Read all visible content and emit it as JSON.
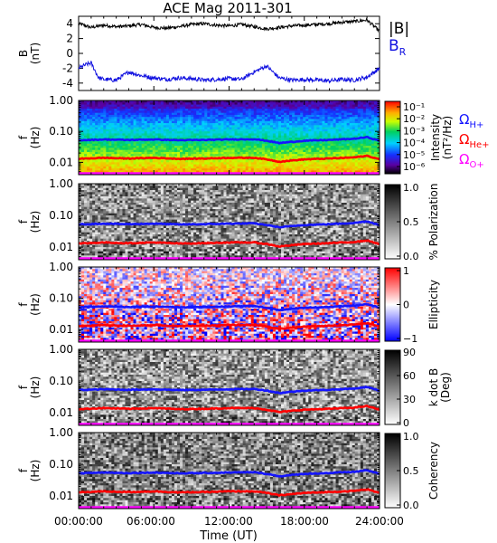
{
  "figure": {
    "title": "ACE Mag 2011-301",
    "xlabel": "Time (UT)",
    "xticks": [
      "00:00:00",
      "06:00:00",
      "12:00:00",
      "18:00:00",
      "24:00:00"
    ]
  },
  "colors": {
    "bt": "#000000",
    "br": "#1010e0",
    "h_plus": "#1515ff",
    "he_plus": "#ff0000",
    "o_plus": "#ff00ff"
  },
  "legend": {
    "bt_label": "|B|",
    "br_label": "B",
    "br_sub": "R",
    "omega": "Ω",
    "h_sub": "H+",
    "he_sub": "He+",
    "o_sub": "O+"
  },
  "chart_data": [
    {
      "type": "line",
      "ylabel": "B",
      "yunit": "(nT)",
      "ylim": [
        -5,
        5
      ],
      "yticks": [
        "4",
        "2",
        "0",
        "-2",
        "-4"
      ],
      "xlim_hours": [
        0,
        24
      ],
      "series": [
        {
          "name": "|B|",
          "x": [
            0,
            1,
            2,
            3,
            4,
            5,
            6,
            7,
            8,
            9,
            10,
            11,
            12,
            13,
            14,
            15,
            16,
            17,
            18,
            19,
            20,
            21,
            22,
            23,
            24
          ],
          "values": [
            4.0,
            3.5,
            3.8,
            3.6,
            3.7,
            3.9,
            3.5,
            3.4,
            3.6,
            3.9,
            4.0,
            3.8,
            3.7,
            3.9,
            3.6,
            3.3,
            3.5,
            3.7,
            3.8,
            3.9,
            4.0,
            4.2,
            4.3,
            4.5,
            3.0
          ]
        },
        {
          "name": "B_R",
          "x": [
            0,
            0.6,
            1,
            1.6,
            2,
            3,
            4,
            5,
            6,
            7,
            8,
            9,
            10,
            11,
            12,
            13,
            14,
            15,
            16,
            17,
            18,
            19,
            20,
            21,
            22,
            23,
            24
          ],
          "values": [
            -2.0,
            -1.5,
            -1.3,
            -3.3,
            -3.5,
            -3.6,
            -2.5,
            -3.0,
            -3.3,
            -3.5,
            -3.3,
            -3.4,
            -3.6,
            -3.5,
            -3.4,
            -3.5,
            -2.5,
            -1.7,
            -3.3,
            -3.6,
            -3.5,
            -3.6,
            -3.7,
            -3.5,
            -3.6,
            -3.2,
            -2.0
          ]
        }
      ]
    },
    {
      "type": "heatmap",
      "panel": "power",
      "ylabel": "f",
      "yunit": "(Hz)",
      "yscale": "log",
      "ylim_hz": [
        0.004,
        1.0
      ],
      "yticks": [
        "1.00",
        "0.10",
        "0.01"
      ],
      "colorbar": {
        "label": "Intensity",
        "unit": "(nT²/Hz)",
        "scale": "log",
        "ticks": [
          "10⁻¹",
          "10⁻²",
          "10⁻³",
          "10⁻⁴",
          "10⁻⁵",
          "10⁻⁶"
        ]
      }
    },
    {
      "type": "heatmap",
      "panel": "polarization",
      "ylabel": "f",
      "yunit": "(Hz)",
      "yscale": "log",
      "ylim_hz": [
        0.004,
        1.0
      ],
      "yticks": [
        "1.00",
        "0.10",
        "0.01"
      ],
      "colorbar": {
        "label": "% Polarization",
        "unit": "",
        "scale": "linear",
        "ticks": [
          "1.0",
          "0.5",
          "0.0"
        ]
      }
    },
    {
      "type": "heatmap",
      "panel": "ellipticity",
      "ylabel": "f",
      "yunit": "(Hz)",
      "yscale": "log",
      "ylim_hz": [
        0.004,
        1.0
      ],
      "yticks": [
        "1.00",
        "0.10",
        "0.01"
      ],
      "colorbar": {
        "label": "Ellipticity",
        "unit": "",
        "scale": "linear",
        "ticks": [
          "1",
          "0",
          "−1"
        ]
      }
    },
    {
      "type": "heatmap",
      "panel": "kdotb",
      "ylabel": "f",
      "yunit": "(Hz)",
      "yscale": "log",
      "ylim_hz": [
        0.004,
        1.0
      ],
      "yticks": [
        "1.00",
        "0.10",
        "0.01"
      ],
      "colorbar": {
        "label": "k dot B",
        "unit": "(Deg)",
        "scale": "linear",
        "ticks": [
          "90",
          "60",
          "30",
          "0"
        ]
      }
    },
    {
      "type": "heatmap",
      "panel": "coherency",
      "ylabel": "f",
      "yunit": "(Hz)",
      "yscale": "log",
      "ylim_hz": [
        0.004,
        1.0
      ],
      "yticks": [
        "1.00",
        "0.10",
        "0.01"
      ],
      "colorbar": {
        "label": "Coherency",
        "unit": "",
        "scale": "linear",
        "ticks": [
          "1.0",
          "0.5",
          "0.0"
        ]
      }
    }
  ],
  "gyrofrequencies": {
    "x_hours": [
      0,
      2,
      4,
      6,
      8,
      10,
      12,
      14,
      15,
      16,
      18,
      20,
      22,
      23,
      24
    ],
    "h_plus_hz": [
      0.052,
      0.055,
      0.053,
      0.055,
      0.052,
      0.053,
      0.055,
      0.056,
      0.05,
      0.042,
      0.05,
      0.053,
      0.058,
      0.065,
      0.05
    ],
    "he_plus_hz": [
      0.013,
      0.014,
      0.0133,
      0.014,
      0.013,
      0.0133,
      0.014,
      0.014,
      0.0125,
      0.0105,
      0.0125,
      0.0133,
      0.0145,
      0.0162,
      0.0125
    ],
    "o_plus_hz": [
      0.0033,
      0.0035,
      0.0033,
      0.0035,
      0.0033,
      0.0033,
      0.0035,
      0.0035,
      0.0031,
      0.0026,
      0.0031,
      0.0033,
      0.0036,
      0.0041,
      0.0031
    ]
  }
}
